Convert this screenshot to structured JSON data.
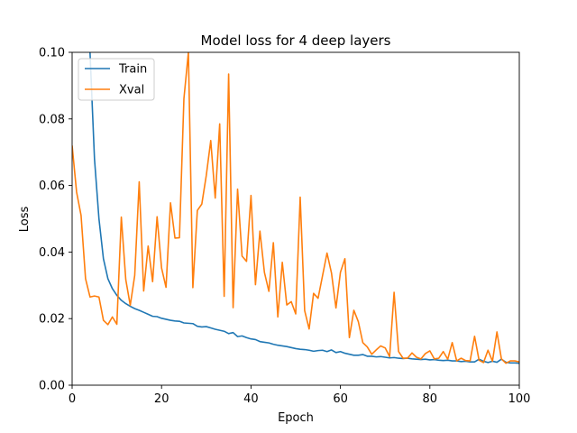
{
  "chart_data": {
    "type": "line",
    "title": "Model loss for 4 deep layers",
    "xlabel": "Epoch",
    "ylabel": "Loss",
    "xlim": [
      0,
      100
    ],
    "ylim": [
      0,
      0.1
    ],
    "xticks": [
      0,
      20,
      40,
      60,
      80,
      100
    ],
    "yticks": [
      0.0,
      0.02,
      0.04,
      0.06,
      0.08,
      0.1
    ],
    "ytick_labels": [
      "0.00",
      "0.02",
      "0.04",
      "0.06",
      "0.08",
      "0.10"
    ],
    "grid": false,
    "legend_position": "top-left",
    "series": [
      {
        "name": "Train",
        "color": "#1f77b4",
        "x": [
          4,
          5,
          6,
          7,
          8,
          9,
          10,
          11,
          12,
          13,
          14,
          15,
          16,
          17,
          18,
          19,
          20,
          21,
          22,
          23,
          24,
          25,
          26,
          27,
          28,
          29,
          30,
          31,
          32,
          33,
          34,
          35,
          36,
          37,
          38,
          39,
          40,
          41,
          42,
          43,
          44,
          45,
          46,
          47,
          48,
          49,
          50,
          51,
          52,
          53,
          54,
          55,
          56,
          57,
          58,
          59,
          60,
          61,
          62,
          63,
          64,
          65,
          66,
          67,
          68,
          69,
          70,
          71,
          72,
          73,
          74,
          75,
          76,
          77,
          78,
          79,
          80,
          81,
          82,
          83,
          84,
          85,
          86,
          87,
          88,
          89,
          90,
          91,
          92,
          93,
          94,
          95,
          96,
          97,
          98,
          99,
          100
        ],
        "values": [
          0.1,
          0.068,
          0.05,
          0.038,
          0.032,
          0.029,
          0.027,
          0.0255,
          0.0245,
          0.0237,
          0.023,
          0.0225,
          0.0219,
          0.0213,
          0.0207,
          0.0206,
          0.0201,
          0.0198,
          0.0195,
          0.0193,
          0.0192,
          0.0187,
          0.0186,
          0.0185,
          0.0177,
          0.0175,
          0.0176,
          0.0172,
          0.0168,
          0.0165,
          0.0162,
          0.0155,
          0.0158,
          0.0146,
          0.0148,
          0.0143,
          0.0139,
          0.0137,
          0.0131,
          0.0129,
          0.0127,
          0.0123,
          0.012,
          0.0118,
          0.0116,
          0.0113,
          0.011,
          0.0108,
          0.0107,
          0.0105,
          0.0102,
          0.0104,
          0.0105,
          0.0101,
          0.0106,
          0.0098,
          0.0101,
          0.0096,
          0.0093,
          0.009,
          0.009,
          0.0092,
          0.0087,
          0.0087,
          0.0085,
          0.0086,
          0.0084,
          0.0082,
          0.0083,
          0.0081,
          0.008,
          0.0081,
          0.0079,
          0.0078,
          0.0077,
          0.0078,
          0.0076,
          0.0077,
          0.0075,
          0.0074,
          0.0075,
          0.0073,
          0.0073,
          0.0071,
          0.0072,
          0.007,
          0.007,
          0.0078,
          0.0072,
          0.0068,
          0.0072,
          0.0069,
          0.0078,
          0.0069,
          0.0067,
          0.0067,
          0.0066
        ]
      },
      {
        "name": "Xval",
        "color": "#ff7f0e",
        "x": [
          0,
          1,
          2,
          3,
          4,
          5,
          6,
          7,
          8,
          9,
          10,
          11,
          12,
          13,
          14,
          15,
          16,
          17,
          18,
          19,
          20,
          21,
          22,
          23,
          24,
          25,
          26,
          27,
          28,
          29,
          30,
          31,
          32,
          33,
          34,
          35,
          36,
          37,
          38,
          39,
          40,
          41,
          42,
          43,
          44,
          45,
          46,
          47,
          48,
          49,
          50,
          51,
          52,
          53,
          54,
          55,
          56,
          57,
          58,
          59,
          60,
          61,
          62,
          63,
          64,
          65,
          66,
          67,
          68,
          69,
          70,
          71,
          72,
          73,
          74,
          75,
          76,
          77,
          78,
          79,
          80,
          81,
          82,
          83,
          84,
          85,
          86,
          87,
          88,
          89,
          90,
          91,
          92,
          93,
          94,
          95,
          96,
          97,
          98,
          99,
          100
        ],
        "values": [
          0.072,
          0.058,
          0.051,
          0.032,
          0.0265,
          0.0268,
          0.0265,
          0.0195,
          0.0182,
          0.0205,
          0.0183,
          0.0505,
          0.0317,
          0.024,
          0.033,
          0.0611,
          0.0283,
          0.0418,
          0.0311,
          0.0506,
          0.0352,
          0.0294,
          0.0548,
          0.0442,
          0.0443,
          0.0861,
          0.1,
          0.0293,
          0.0525,
          0.0544,
          0.063,
          0.0735,
          0.0562,
          0.0785,
          0.0267,
          0.0935,
          0.0233,
          0.0589,
          0.0388,
          0.0372,
          0.057,
          0.0302,
          0.0463,
          0.0339,
          0.0282,
          0.0428,
          0.0205,
          0.0369,
          0.0241,
          0.0251,
          0.0214,
          0.0565,
          0.0224,
          0.0169,
          0.0276,
          0.0261,
          0.0329,
          0.0397,
          0.0337,
          0.0232,
          0.0339,
          0.038,
          0.0143,
          0.0225,
          0.0191,
          0.0128,
          0.0115,
          0.0093,
          0.0106,
          0.0118,
          0.0112,
          0.0086,
          0.0279,
          0.0101,
          0.0081,
          0.0081,
          0.0097,
          0.0084,
          0.0079,
          0.0095,
          0.0103,
          0.0079,
          0.0081,
          0.0101,
          0.0078,
          0.0128,
          0.0073,
          0.0081,
          0.0074,
          0.0073,
          0.0147,
          0.0075,
          0.0068,
          0.0105,
          0.0072,
          0.016,
          0.0079,
          0.0066,
          0.0073,
          0.0073,
          0.007
        ]
      }
    ]
  }
}
